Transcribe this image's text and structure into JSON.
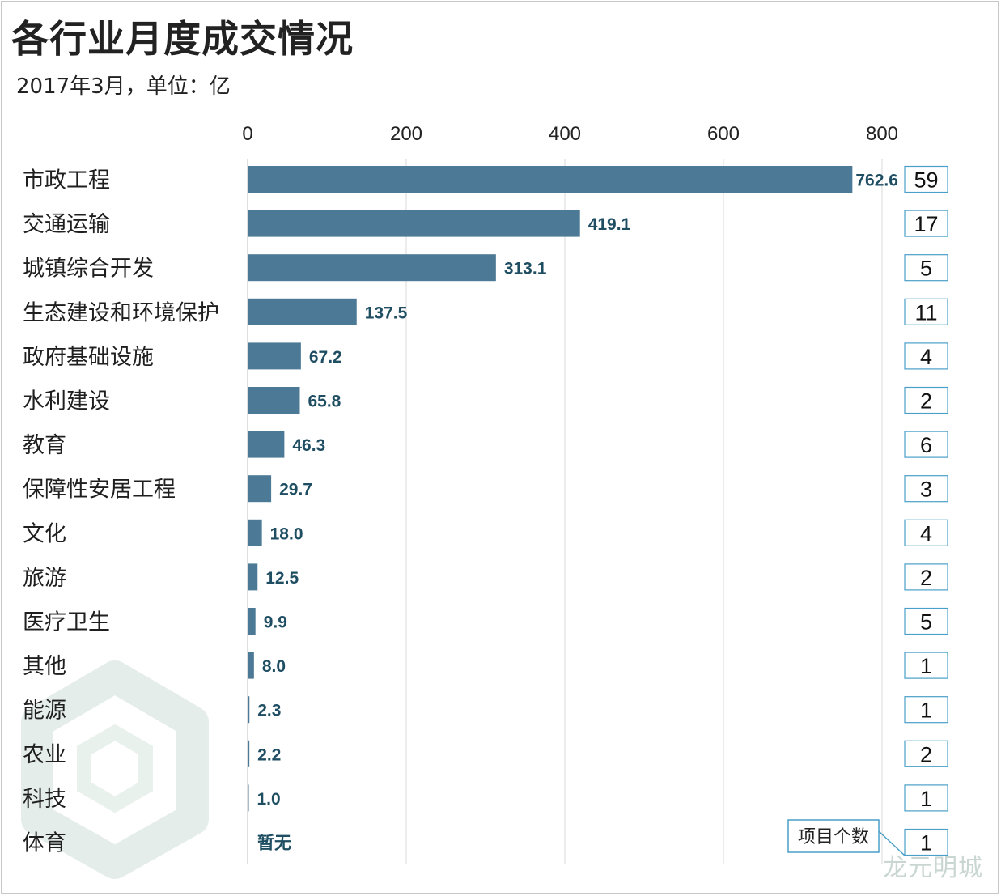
{
  "chart_data": {
    "type": "bar",
    "orientation": "horizontal",
    "title": "各行业月度成交情况",
    "subtitle": "2017年3月，单位：亿",
    "categories": [
      "市政工程",
      "交通运输",
      "城镇综合开发",
      "生态建设和环境保护",
      "政府基础设施",
      "水利建设",
      "教育",
      "保障性安居工程",
      "文化",
      "旅游",
      "医疗卫生",
      "其他",
      "能源",
      "农业",
      "科技",
      "体育"
    ],
    "values": [
      762.6,
      419.1,
      313.1,
      137.5,
      67.2,
      65.8,
      46.3,
      29.7,
      18.0,
      12.5,
      9.9,
      8.0,
      2.3,
      2.2,
      1.0,
      null
    ],
    "value_labels": [
      "762.6",
      "419.1",
      "313.1",
      "137.5",
      "67.2",
      "65.8",
      "46.3",
      "29.7",
      "18.0",
      "12.5",
      "9.9",
      "8.0",
      "2.3",
      "2.2",
      "1.0",
      "暂无"
    ],
    "counts": [
      59,
      17,
      5,
      11,
      4,
      2,
      6,
      3,
      4,
      2,
      5,
      1,
      1,
      2,
      1,
      1
    ],
    "xlim": [
      0,
      800
    ],
    "xticks": [
      0,
      200,
      400,
      600,
      800
    ],
    "xtick_labels": [
      "0",
      "200",
      "400",
      "600",
      "800"
    ],
    "grid": true,
    "legend_label": "项目个数"
  },
  "colors": {
    "bar": "#4c7a96",
    "value_text": "#1f4e63",
    "grid": "#d9d9d9",
    "count_box_border": "#4a9fc8",
    "watermark": "#c9d6d1"
  },
  "watermark": "龙元明城"
}
